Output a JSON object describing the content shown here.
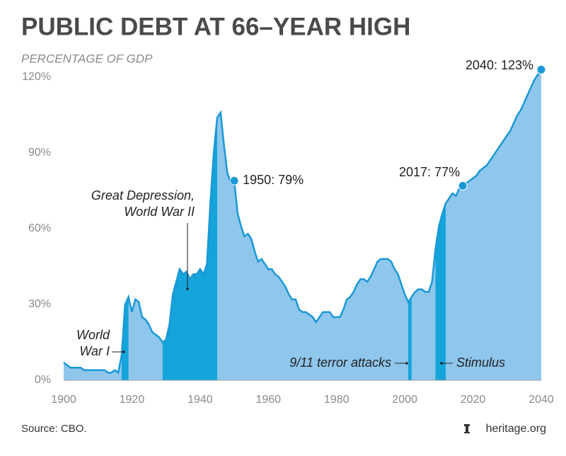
{
  "chart_data": {
    "type": "area",
    "title": "PUBLIC DEBT AT 66–YEAR HIGH",
    "subtitle": "PERCENTAGE OF GDP",
    "source": "Source: CBO.",
    "brand": "heritage.org",
    "x": [
      1900,
      1901,
      1902,
      1903,
      1904,
      1905,
      1906,
      1907,
      1908,
      1909,
      1910,
      1911,
      1912,
      1913,
      1914,
      1915,
      1916,
      1917,
      1918,
      1919,
      1920,
      1921,
      1922,
      1923,
      1924,
      1925,
      1926,
      1927,
      1928,
      1929,
      1930,
      1931,
      1932,
      1933,
      1934,
      1935,
      1936,
      1937,
      1938,
      1939,
      1940,
      1941,
      1942,
      1943,
      1944,
      1945,
      1946,
      1947,
      1948,
      1949,
      1950,
      1951,
      1952,
      1953,
      1954,
      1955,
      1956,
      1957,
      1958,
      1959,
      1960,
      1961,
      1962,
      1963,
      1964,
      1965,
      1966,
      1967,
      1968,
      1969,
      1970,
      1971,
      1972,
      1973,
      1974,
      1975,
      1976,
      1977,
      1978,
      1979,
      1980,
      1981,
      1982,
      1983,
      1984,
      1985,
      1986,
      1987,
      1988,
      1989,
      1990,
      1991,
      1992,
      1993,
      1994,
      1995,
      1996,
      1997,
      1998,
      1999,
      2000,
      2001,
      2002,
      2003,
      2004,
      2005,
      2006,
      2007,
      2008,
      2009,
      2010,
      2011,
      2012,
      2013,
      2014,
      2015,
      2016,
      2017,
      2018,
      2019,
      2020,
      2021,
      2022,
      2023,
      2024,
      2025,
      2026,
      2027,
      2028,
      2029,
      2030,
      2031,
      2032,
      2033,
      2034,
      2035,
      2036,
      2037,
      2038,
      2039,
      2040
    ],
    "values": [
      7,
      6,
      5,
      5,
      5,
      5,
      4,
      4,
      4,
      4,
      4,
      4,
      4,
      3,
      3,
      4,
      3,
      10,
      30,
      33,
      27,
      32,
      31,
      25,
      24,
      22,
      19,
      18,
      17,
      15,
      16,
      22,
      34,
      39,
      44,
      42,
      43,
      40,
      42,
      42,
      44,
      42,
      46,
      70,
      90,
      104,
      106,
      93,
      82,
      78,
      79,
      66,
      61,
      57,
      58,
      56,
      51,
      47,
      48,
      46,
      44,
      44,
      42,
      41,
      39,
      37,
      34,
      32,
      32,
      28,
      27,
      27,
      26,
      25,
      23,
      25,
      27,
      27,
      27,
      25,
      25,
      25,
      28,
      32,
      33,
      35,
      38,
      40,
      40,
      39,
      41,
      44,
      47,
      48,
      48,
      48,
      47,
      44,
      42,
      38,
      34,
      31,
      33,
      35,
      36,
      36,
      35,
      35,
      39,
      52,
      61,
      66,
      70,
      72,
      74,
      73,
      76,
      77,
      78,
      79,
      80,
      81,
      83,
      84,
      85,
      87,
      89,
      91,
      93,
      95,
      97,
      99,
      102,
      105,
      107,
      110,
      113,
      116,
      119,
      121,
      123
    ],
    "color": "#8fc6ec",
    "line_color": "#1a98d5",
    "highlight_color": "#15a4da",
    "highlights": [
      {
        "lines": [
          "World",
          "War I"
        ],
        "start": 1917,
        "end": 1919
      },
      {
        "lines": [
          "Great Depression,",
          "World War II"
        ],
        "start": 1929,
        "end": 1945
      },
      {
        "lines": [
          "9/11 terror attacks"
        ],
        "start": 2001,
        "end": 2002
      },
      {
        "lines": [
          "Stimulus"
        ],
        "start": 2009,
        "end": 2012
      }
    ],
    "annotations": [
      {
        "x": 1950,
        "y": 79,
        "label": "1950: 79%"
      },
      {
        "x": 2017,
        "y": 77,
        "label": "2017: 77%"
      },
      {
        "x": 2040,
        "y": 123,
        "label": "2040: 123%"
      }
    ],
    "xlim": [
      1900,
      2040
    ],
    "xticks": [
      1900,
      1920,
      1940,
      1960,
      1980,
      2000,
      2020,
      2040
    ],
    "ylim": [
      0,
      120
    ],
    "yticks": [
      {
        "value": 0,
        "label": "0%"
      },
      {
        "value": 30,
        "label": "30%"
      },
      {
        "value": 60,
        "label": "60%"
      },
      {
        "value": 90,
        "label": "90%"
      },
      {
        "value": 120,
        "label": "120%"
      }
    ],
    "grid": false
  }
}
